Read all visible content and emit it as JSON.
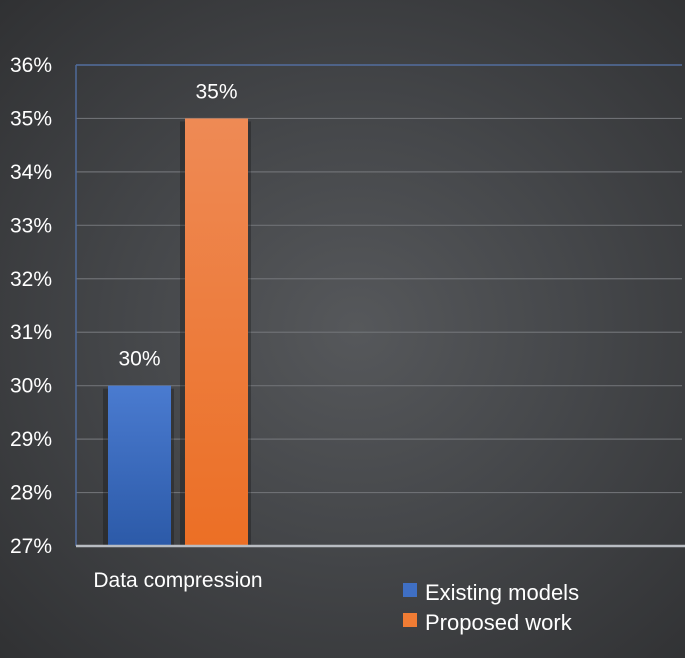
{
  "chart_data": {
    "type": "bar",
    "title": "",
    "xlabel": "",
    "ylabel": "",
    "categories": [
      "Data compression"
    ],
    "series": [
      {
        "name": "Existing models",
        "values": [
          0.3
        ],
        "color": "#3f6fc4"
      },
      {
        "name": "Proposed work",
        "values": [
          0.35
        ],
        "color": "#f07c34"
      }
    ],
    "ylim": [
      0.27,
      0.36
    ],
    "yticks": [
      "27%",
      "28%",
      "29%",
      "30%",
      "31%",
      "32%",
      "33%",
      "34%",
      "35%",
      "36%"
    ],
    "data_labels": [
      "30%",
      "35%"
    ],
    "grid": true,
    "legend_position": "bottom-right"
  }
}
